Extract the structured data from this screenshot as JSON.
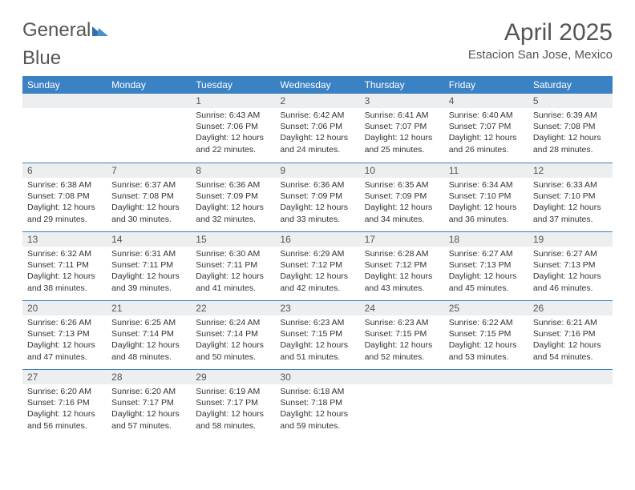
{
  "brand": {
    "part1": "General",
    "part2": "Blue"
  },
  "title": "April 2025",
  "location": "Estacion San Jose, Mexico",
  "colors": {
    "header_bg": "#3b82c4",
    "header_text": "#ffffff",
    "daynum_bg": "#eceef0",
    "rule": "#3b82c4",
    "text": "#333333",
    "title_text": "#555555",
    "logo_blue": "#2f6fb0"
  },
  "weekdays": [
    "Sunday",
    "Monday",
    "Tuesday",
    "Wednesday",
    "Thursday",
    "Friday",
    "Saturday"
  ],
  "weeks": [
    [
      {
        "n": "",
        "lines": []
      },
      {
        "n": "",
        "lines": []
      },
      {
        "n": "1",
        "lines": [
          "Sunrise: 6:43 AM",
          "Sunset: 7:06 PM",
          "Daylight: 12 hours and 22 minutes."
        ]
      },
      {
        "n": "2",
        "lines": [
          "Sunrise: 6:42 AM",
          "Sunset: 7:06 PM",
          "Daylight: 12 hours and 24 minutes."
        ]
      },
      {
        "n": "3",
        "lines": [
          "Sunrise: 6:41 AM",
          "Sunset: 7:07 PM",
          "Daylight: 12 hours and 25 minutes."
        ]
      },
      {
        "n": "4",
        "lines": [
          "Sunrise: 6:40 AM",
          "Sunset: 7:07 PM",
          "Daylight: 12 hours and 26 minutes."
        ]
      },
      {
        "n": "5",
        "lines": [
          "Sunrise: 6:39 AM",
          "Sunset: 7:08 PM",
          "Daylight: 12 hours and 28 minutes."
        ]
      }
    ],
    [
      {
        "n": "6",
        "lines": [
          "Sunrise: 6:38 AM",
          "Sunset: 7:08 PM",
          "Daylight: 12 hours and 29 minutes."
        ]
      },
      {
        "n": "7",
        "lines": [
          "Sunrise: 6:37 AM",
          "Sunset: 7:08 PM",
          "Daylight: 12 hours and 30 minutes."
        ]
      },
      {
        "n": "8",
        "lines": [
          "Sunrise: 6:36 AM",
          "Sunset: 7:09 PM",
          "Daylight: 12 hours and 32 minutes."
        ]
      },
      {
        "n": "9",
        "lines": [
          "Sunrise: 6:36 AM",
          "Sunset: 7:09 PM",
          "Daylight: 12 hours and 33 minutes."
        ]
      },
      {
        "n": "10",
        "lines": [
          "Sunrise: 6:35 AM",
          "Sunset: 7:09 PM",
          "Daylight: 12 hours and 34 minutes."
        ]
      },
      {
        "n": "11",
        "lines": [
          "Sunrise: 6:34 AM",
          "Sunset: 7:10 PM",
          "Daylight: 12 hours and 36 minutes."
        ]
      },
      {
        "n": "12",
        "lines": [
          "Sunrise: 6:33 AM",
          "Sunset: 7:10 PM",
          "Daylight: 12 hours and 37 minutes."
        ]
      }
    ],
    [
      {
        "n": "13",
        "lines": [
          "Sunrise: 6:32 AM",
          "Sunset: 7:11 PM",
          "Daylight: 12 hours and 38 minutes."
        ]
      },
      {
        "n": "14",
        "lines": [
          "Sunrise: 6:31 AM",
          "Sunset: 7:11 PM",
          "Daylight: 12 hours and 39 minutes."
        ]
      },
      {
        "n": "15",
        "lines": [
          "Sunrise: 6:30 AM",
          "Sunset: 7:11 PM",
          "Daylight: 12 hours and 41 minutes."
        ]
      },
      {
        "n": "16",
        "lines": [
          "Sunrise: 6:29 AM",
          "Sunset: 7:12 PM",
          "Daylight: 12 hours and 42 minutes."
        ]
      },
      {
        "n": "17",
        "lines": [
          "Sunrise: 6:28 AM",
          "Sunset: 7:12 PM",
          "Daylight: 12 hours and 43 minutes."
        ]
      },
      {
        "n": "18",
        "lines": [
          "Sunrise: 6:27 AM",
          "Sunset: 7:13 PM",
          "Daylight: 12 hours and 45 minutes."
        ]
      },
      {
        "n": "19",
        "lines": [
          "Sunrise: 6:27 AM",
          "Sunset: 7:13 PM",
          "Daylight: 12 hours and 46 minutes."
        ]
      }
    ],
    [
      {
        "n": "20",
        "lines": [
          "Sunrise: 6:26 AM",
          "Sunset: 7:13 PM",
          "Daylight: 12 hours and 47 minutes."
        ]
      },
      {
        "n": "21",
        "lines": [
          "Sunrise: 6:25 AM",
          "Sunset: 7:14 PM",
          "Daylight: 12 hours and 48 minutes."
        ]
      },
      {
        "n": "22",
        "lines": [
          "Sunrise: 6:24 AM",
          "Sunset: 7:14 PM",
          "Daylight: 12 hours and 50 minutes."
        ]
      },
      {
        "n": "23",
        "lines": [
          "Sunrise: 6:23 AM",
          "Sunset: 7:15 PM",
          "Daylight: 12 hours and 51 minutes."
        ]
      },
      {
        "n": "24",
        "lines": [
          "Sunrise: 6:23 AM",
          "Sunset: 7:15 PM",
          "Daylight: 12 hours and 52 minutes."
        ]
      },
      {
        "n": "25",
        "lines": [
          "Sunrise: 6:22 AM",
          "Sunset: 7:15 PM",
          "Daylight: 12 hours and 53 minutes."
        ]
      },
      {
        "n": "26",
        "lines": [
          "Sunrise: 6:21 AM",
          "Sunset: 7:16 PM",
          "Daylight: 12 hours and 54 minutes."
        ]
      }
    ],
    [
      {
        "n": "27",
        "lines": [
          "Sunrise: 6:20 AM",
          "Sunset: 7:16 PM",
          "Daylight: 12 hours and 56 minutes."
        ]
      },
      {
        "n": "28",
        "lines": [
          "Sunrise: 6:20 AM",
          "Sunset: 7:17 PM",
          "Daylight: 12 hours and 57 minutes."
        ]
      },
      {
        "n": "29",
        "lines": [
          "Sunrise: 6:19 AM",
          "Sunset: 7:17 PM",
          "Daylight: 12 hours and 58 minutes."
        ]
      },
      {
        "n": "30",
        "lines": [
          "Sunrise: 6:18 AM",
          "Sunset: 7:18 PM",
          "Daylight: 12 hours and 59 minutes."
        ]
      },
      {
        "n": "",
        "lines": []
      },
      {
        "n": "",
        "lines": []
      },
      {
        "n": "",
        "lines": []
      }
    ]
  ]
}
